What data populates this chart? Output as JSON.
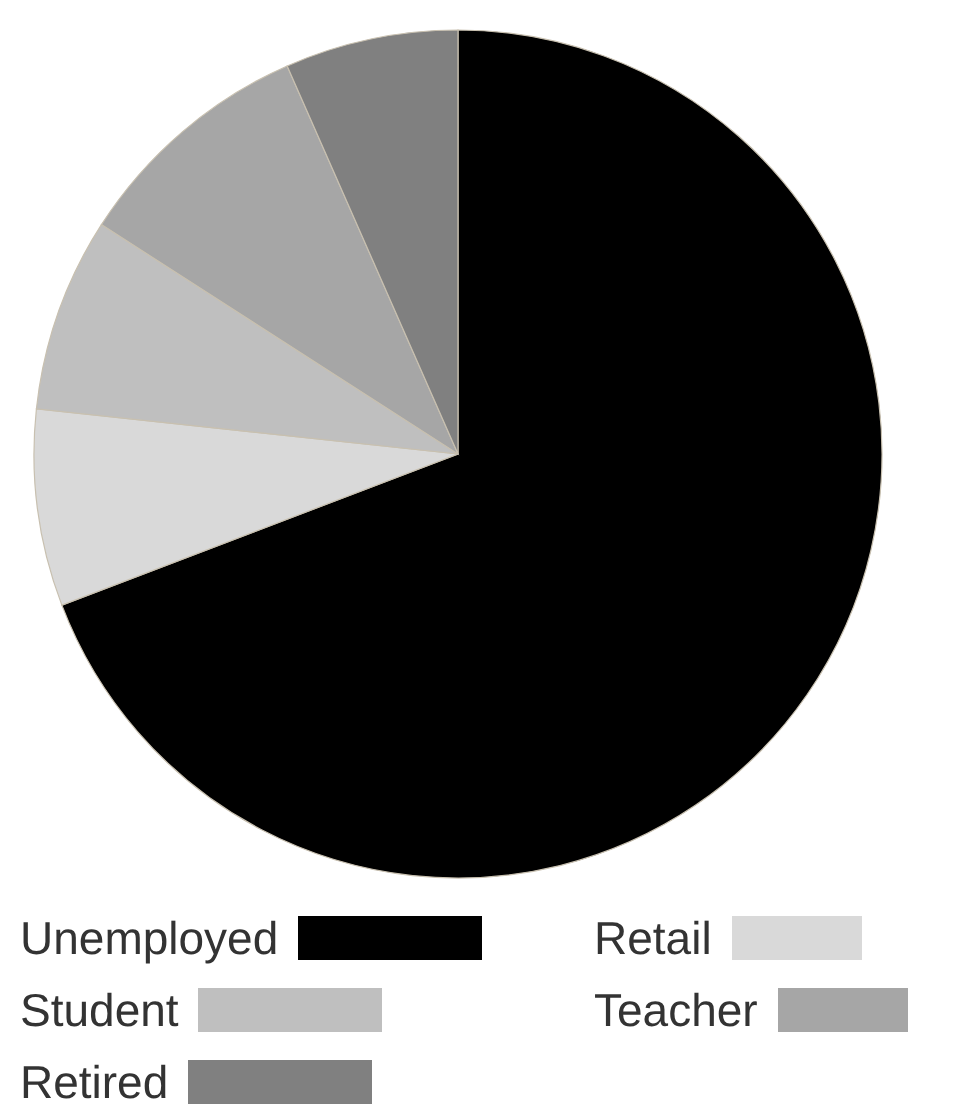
{
  "chart_data": {
    "type": "pie",
    "categories": [
      "Unemployed",
      "Retail",
      "Student",
      "Teacher",
      "Retired"
    ],
    "values": [
      69.2,
      7.5,
      7.4,
      9.3,
      6.6
    ],
    "colors": [
      "#000000",
      "#d9d9d9",
      "#bfbfbf",
      "#a6a6a6",
      "#808080"
    ],
    "legend": "bottom"
  }
}
